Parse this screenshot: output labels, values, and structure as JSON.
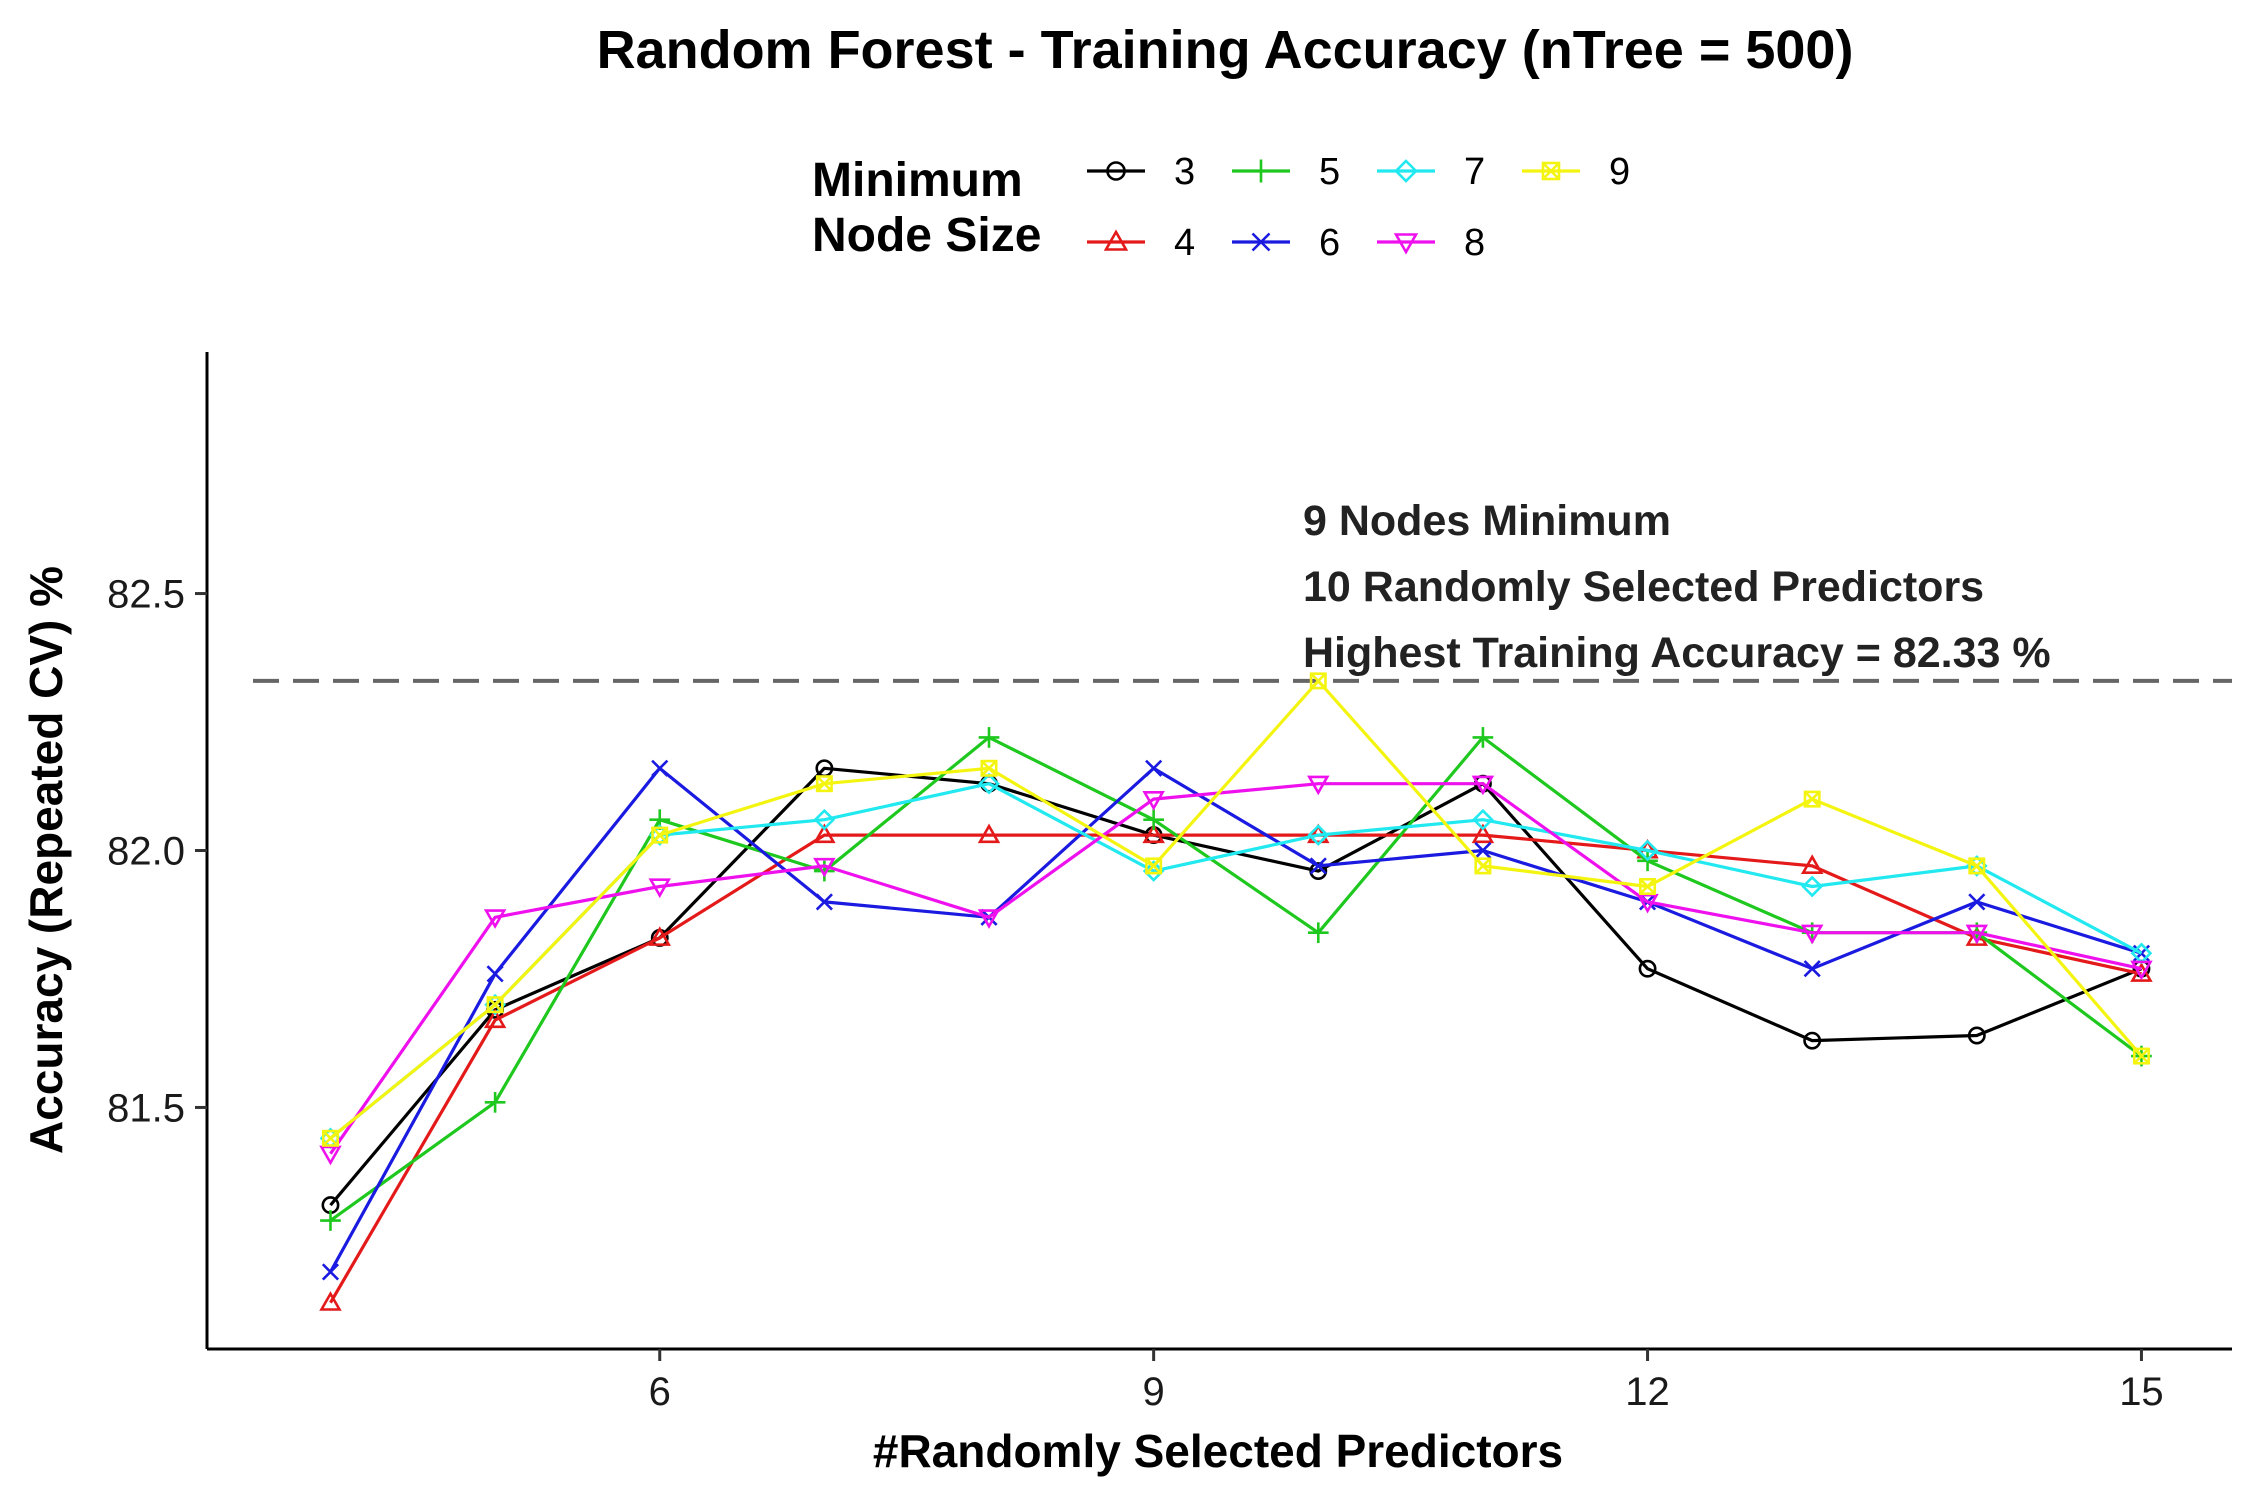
{
  "chart_data": {
    "type": "line",
    "title": "Random Forest - Training Accuracy (nTree = 500)",
    "xlabel": "#Randomly Selected Predictors",
    "ylabel": "Accuracy (Repeated CV) %",
    "xlim": [
      3.25,
      15.55
    ],
    "ylim": [
      81.03,
      82.97
    ],
    "xticks": [
      6,
      9,
      12,
      15
    ],
    "xtick_labels": [
      "6",
      "9",
      "12",
      "15"
    ],
    "yticks": [
      81.5,
      82.0,
      82.5
    ],
    "ytick_labels": [
      "81.5",
      "82.0",
      "82.5"
    ],
    "grid": false,
    "legend": {
      "title_line1": "Minimum",
      "title_line2": "Node Size",
      "placement": "top"
    },
    "reference_line": {
      "y": 82.33,
      "style": "dashed",
      "color": "#666666"
    },
    "annotations": [
      "9 Nodes Minimum",
      "10 Randomly Selected Predictors",
      "Highest Training Accuracy = 82.33 %"
    ],
    "x": [
      4,
      5,
      6,
      7,
      8,
      9,
      10,
      11,
      12,
      13,
      14,
      15
    ],
    "series": [
      {
        "name": "3",
        "color": "#000000",
        "marker": "circle",
        "values": [
          81.31,
          81.69,
          81.83,
          82.16,
          82.13,
          82.03,
          81.96,
          82.13,
          81.77,
          81.63,
          81.64,
          81.77
        ]
      },
      {
        "name": "4",
        "color": "#e41a1a",
        "marker": "triangle-up",
        "values": [
          81.12,
          81.67,
          81.83,
          82.03,
          82.03,
          82.03,
          82.03,
          82.03,
          82.0,
          81.97,
          81.83,
          81.76
        ]
      },
      {
        "name": "5",
        "color": "#1ec81e",
        "marker": "plus",
        "values": [
          81.28,
          81.51,
          82.06,
          81.96,
          82.22,
          82.06,
          81.84,
          82.22,
          81.98,
          81.84,
          81.84,
          81.6
        ]
      },
      {
        "name": "6",
        "color": "#1a1ae0",
        "marker": "x",
        "values": [
          81.18,
          81.76,
          82.16,
          81.9,
          81.87,
          82.16,
          81.97,
          82.0,
          81.9,
          81.77,
          81.9,
          81.8
        ]
      },
      {
        "name": "7",
        "color": "#22e8f0",
        "marker": "diamond",
        "values": [
          81.44,
          81.7,
          82.03,
          82.06,
          82.13,
          81.96,
          82.03,
          82.06,
          82.0,
          81.93,
          81.97,
          81.8
        ]
      },
      {
        "name": "8",
        "color": "#ee11ee",
        "marker": "triangle-down",
        "values": [
          81.41,
          81.87,
          81.93,
          81.97,
          81.87,
          82.1,
          82.13,
          82.13,
          81.9,
          81.84,
          81.84,
          81.77
        ]
      },
      {
        "name": "9",
        "color": "#f4f411",
        "marker": "square-x",
        "values": [
          81.44,
          81.7,
          82.03,
          82.13,
          82.16,
          81.97,
          82.33,
          81.97,
          81.93,
          82.1,
          81.97,
          81.6
        ]
      }
    ]
  }
}
